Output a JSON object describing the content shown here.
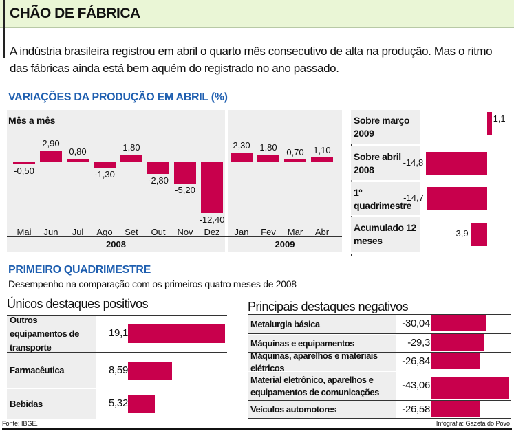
{
  "header": {
    "title": "CHÃO DE FÁBRICA",
    "intro": "A indústria brasileira registrou em abril o quarto mês consecutivo de alta na produção. Mas o ritmo das fábricas ainda está bem aquém do registrado no ano passado."
  },
  "colors": {
    "bar": "#c8004c",
    "heading": "#1f5fb0",
    "header_bg": "#eaf6d6",
    "panel_bg": "#eeeeee"
  },
  "chart_data": [
    {
      "type": "bar",
      "title": "VARIAÇÕES DA PRODUÇÃO EM ABRIL (%)",
      "subtitle": "Mês a mês",
      "categories": [
        "Mai",
        "Jun",
        "Jul",
        "Ago",
        "Set",
        "Out",
        "Nov",
        "Dez",
        "Jan",
        "Fev",
        "Mar",
        "Abr"
      ],
      "value_labels": [
        "-0,50",
        "2,90",
        "0,80",
        "-1,30",
        "1,80",
        "-2,80",
        "-5,20",
        "-12,40",
        "2,30",
        "1,80",
        "0,70",
        "1,10"
      ],
      "values": [
        -0.5,
        2.9,
        0.8,
        -1.3,
        1.8,
        -2.8,
        -5.2,
        -12.4,
        2.3,
        1.8,
        0.7,
        1.1
      ],
      "year_groups": [
        {
          "label": "2008",
          "count": 8
        },
        {
          "label": "2009",
          "count": 4
        }
      ]
    },
    {
      "type": "bar",
      "orientation": "horizontal",
      "categories": [
        "Sobre março 2009",
        "Sobre abril 2008",
        "1º quadrimestre",
        "Acumulado 12 meses"
      ],
      "value_labels": [
        "1,1",
        "-14,8",
        "-14,7",
        "-3,9"
      ],
      "values": [
        1.1,
        -14.8,
        -14.7,
        -3.9
      ]
    },
    {
      "type": "bar",
      "orientation": "horizontal",
      "title": "Únicos destaques positivos",
      "categories": [
        "Outros equipamentos de transporte",
        "Farmacêutica",
        "Bebidas"
      ],
      "value_labels": [
        "19,1",
        "8,59",
        "5,32"
      ],
      "values": [
        19.1,
        8.59,
        5.32
      ]
    },
    {
      "type": "bar",
      "orientation": "horizontal",
      "title": "Principais destaques negativos",
      "categories": [
        "Metalurgia básica",
        "Máquinas e equipamentos",
        "Máquinas, aparelhos e materiais elétricos",
        "Material eletrônico, aparelhos e equipamentos de comunicações",
        "Veículos automotores"
      ],
      "value_labels": [
        "-30,04",
        "-29,3",
        "-26,84",
        "-43,06",
        "-26,58"
      ],
      "values": [
        -30.04,
        -29.3,
        -26.84,
        -43.06,
        -26.58
      ]
    }
  ],
  "section2": {
    "title": "PRIMEIRO QUADRIMESTRE",
    "subtitle": "Desempenho na comparação com os primeiros quatro meses de 2008"
  },
  "footer": {
    "source": "Fonte: IBGE.",
    "credit": "Infografia: Gazeta do Povo"
  }
}
